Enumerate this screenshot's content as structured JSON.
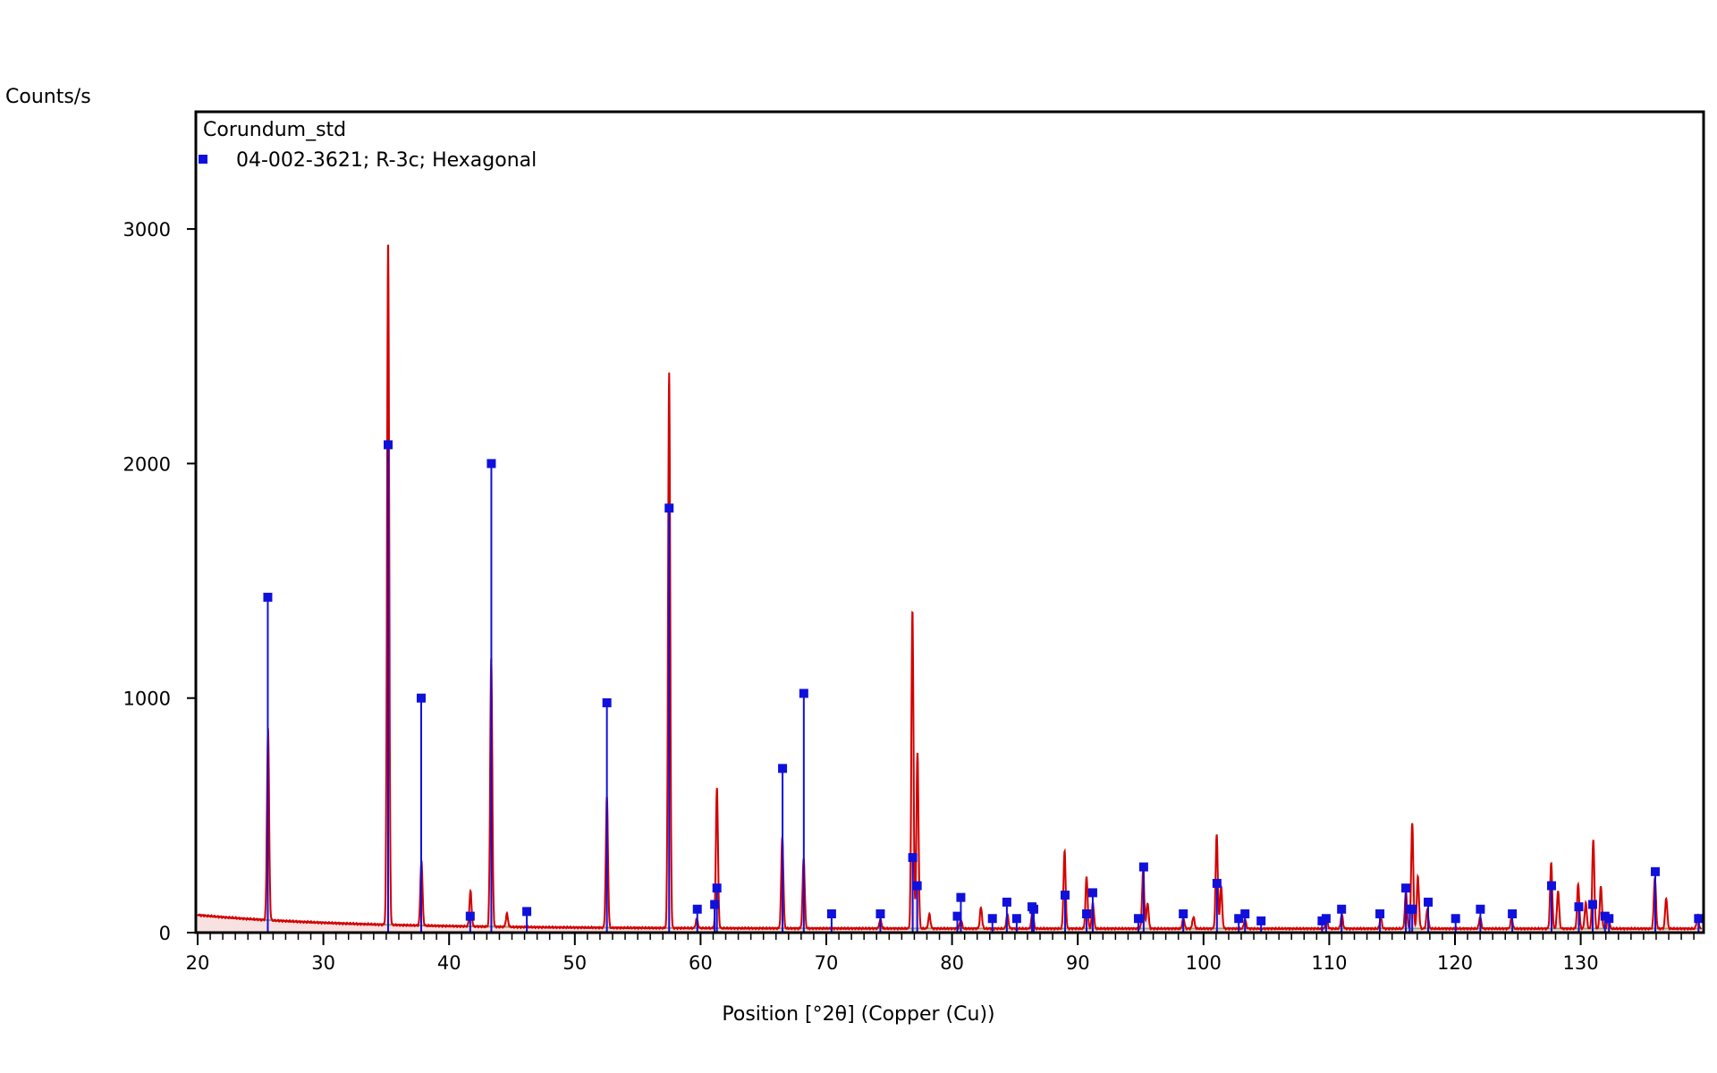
{
  "chart_data": {
    "type": "line",
    "ylabel": "Counts/s",
    "xlabel": "Position [°2θ] (Copper (Cu))",
    "xlim": [
      20,
      140
    ],
    "ylim": [
      0,
      3400
    ],
    "x_ticks": [
      20,
      30,
      40,
      50,
      60,
      70,
      80,
      90,
      100,
      110,
      120,
      130
    ],
    "y_ticks": [
      0,
      1000,
      2000,
      3000
    ],
    "legend": {
      "title": "Corundum_std",
      "entries": [
        "04-002-3621; R-3c; Hexagonal"
      ],
      "position": "top-left"
    },
    "colors": {
      "measured": "#d40000",
      "background": "#1a7a1a",
      "reference": "#1010dd",
      "frame": "#000000"
    },
    "series": [
      {
        "role": "measured",
        "peaks": [
          {
            "x": 25.6,
            "y": 820
          },
          {
            "x": 35.15,
            "y": 2920
          },
          {
            "x": 37.8,
            "y": 280
          },
          {
            "x": 41.7,
            "y": 150
          },
          {
            "x": 43.35,
            "y": 1150
          },
          {
            "x": 44.6,
            "y": 55
          },
          {
            "x": 52.55,
            "y": 560
          },
          {
            "x": 57.5,
            "y": 2370
          },
          {
            "x": 59.7,
            "y": 40
          },
          {
            "x": 61.3,
            "y": 600
          },
          {
            "x": 66.5,
            "y": 390
          },
          {
            "x": 68.2,
            "y": 300
          },
          {
            "x": 74.3,
            "y": 40
          },
          {
            "x": 76.85,
            "y": 1360
          },
          {
            "x": 77.25,
            "y": 750
          },
          {
            "x": 78.2,
            "y": 60
          },
          {
            "x": 80.7,
            "y": 40
          },
          {
            "x": 82.3,
            "y": 90
          },
          {
            "x": 84.4,
            "y": 60
          },
          {
            "x": 86.4,
            "y": 80
          },
          {
            "x": 88.95,
            "y": 330
          },
          {
            "x": 90.7,
            "y": 220
          },
          {
            "x": 91.2,
            "y": 110
          },
          {
            "x": 95.2,
            "y": 250
          },
          {
            "x": 95.55,
            "y": 110
          },
          {
            "x": 98.4,
            "y": 45
          },
          {
            "x": 99.2,
            "y": 50
          },
          {
            "x": 101.05,
            "y": 400
          },
          {
            "x": 101.4,
            "y": 180
          },
          {
            "x": 103.3,
            "y": 40
          },
          {
            "x": 109.8,
            "y": 35
          },
          {
            "x": 111.0,
            "y": 60
          },
          {
            "x": 114.1,
            "y": 45
          },
          {
            "x": 116.1,
            "y": 160
          },
          {
            "x": 116.6,
            "y": 450
          },
          {
            "x": 117.05,
            "y": 220
          },
          {
            "x": 117.8,
            "y": 80
          },
          {
            "x": 122.0,
            "y": 50
          },
          {
            "x": 124.5,
            "y": 45
          },
          {
            "x": 127.65,
            "y": 280
          },
          {
            "x": 128.2,
            "y": 160
          },
          {
            "x": 129.8,
            "y": 190
          },
          {
            "x": 130.4,
            "y": 110
          },
          {
            "x": 131.0,
            "y": 380
          },
          {
            "x": 131.6,
            "y": 180
          },
          {
            "x": 132.2,
            "y": 50
          },
          {
            "x": 135.9,
            "y": 220
          },
          {
            "x": 136.8,
            "y": 130
          },
          {
            "x": 139.3,
            "y": 60
          }
        ]
      },
      {
        "role": "reference",
        "name": "04-002-3621; R-3c; Hexagonal",
        "x": [
          25.58,
          35.15,
          37.78,
          41.68,
          43.36,
          46.18,
          52.55,
          57.5,
          59.74,
          61.12,
          61.3,
          66.52,
          68.21,
          70.42,
          74.3,
          76.87,
          77.23,
          80.42,
          80.7,
          83.21,
          84.36,
          85.14,
          86.36,
          86.5,
          88.99,
          90.7,
          91.19,
          94.82,
          95.24,
          98.39,
          101.07,
          102.8,
          103.3,
          104.58,
          109.43,
          109.75,
          110.98,
          114.03,
          116.09,
          116.4,
          116.6,
          117.87,
          120.05,
          122.02,
          124.56,
          127.68,
          129.85,
          130.95,
          131.93,
          132.25,
          135.93,
          139.37
        ],
        "y": [
          1430,
          2080,
          1000,
          70,
          2000,
          90,
          980,
          1810,
          100,
          120,
          190,
          700,
          1020,
          80,
          80,
          320,
          200,
          70,
          150,
          60,
          130,
          60,
          110,
          100,
          160,
          80,
          170,
          60,
          280,
          80,
          210,
          60,
          80,
          50,
          50,
          60,
          100,
          80,
          190,
          100,
          100,
          130,
          60,
          100,
          80,
          200,
          110,
          120,
          70,
          60,
          260,
          60
        ]
      }
    ]
  }
}
